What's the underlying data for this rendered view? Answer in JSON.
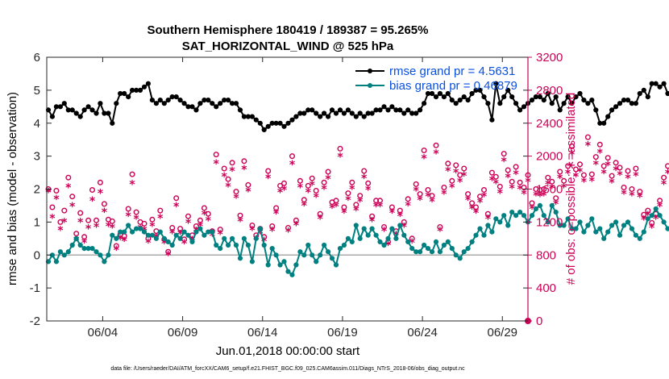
{
  "chart_data": {
    "type": "line",
    "title_line1": "Southern Hemisphere 180419 / 189387 = 95.265%",
    "title_line2": "SAT_HORIZONTAL_WIND @ 525 hPa",
    "xlabel": "Jun.01,2018 00:00:00 start",
    "ylabel_left": "rmse and bias (model - observation)",
    "ylabel_right": "# of obs: o=possible; ∗=assimilated",
    "footer": "data file: /Users/raeder/DAI/ATM_forcXX/CAM6_setup/f.e21.FHIST_BGC.f09_025.CAM6assim.011/Diags_NTrS_2018-06/obs_diag_output.nc",
    "xlim": [
      0.5,
      30.6
    ],
    "ylim_left": [
      -2,
      6
    ],
    "ylim_right": [
      0,
      3200
    ],
    "xtick_values": [
      4,
      9,
      14,
      19,
      24,
      29
    ],
    "xtick_labels": [
      "06/04",
      "06/09",
      "06/14",
      "06/19",
      "06/24",
      "06/29"
    ],
    "yticks_left": [
      "-2",
      "-1",
      "0",
      "1",
      "2",
      "3",
      "4",
      "5",
      "6"
    ],
    "yticks_right": [
      "0",
      "400",
      "800",
      "1200",
      "1600",
      "2000",
      "2400",
      "2800",
      "3200"
    ],
    "colors": {
      "rmse": "#000000",
      "bias": "#008080",
      "counts": "#cc0055",
      "zero_line": "#aaaaaa"
    },
    "legend": [
      {
        "name": "rmse grand pr = 4.5631",
        "color": "#0a50e0"
      },
      {
        "name": "bias grand pr = 0.46879",
        "color": "#0a50e0"
      }
    ],
    "series_x_start": 0.6,
    "series_x_step": 0.25,
    "series": [
      {
        "name": "rmse",
        "axis": "left",
        "values": [
          4.4,
          4.2,
          4.5,
          4.5,
          4.6,
          4.4,
          4.4,
          4.3,
          4.2,
          4.4,
          4.5,
          4.4,
          4.3,
          4.6,
          4.3,
          4.3,
          4.0,
          4.6,
          4.9,
          4.9,
          4.8,
          5.0,
          5.0,
          5.0,
          5.1,
          5.2,
          4.7,
          4.6,
          4.7,
          4.6,
          4.7,
          4.8,
          4.8,
          4.7,
          4.6,
          4.5,
          4.5,
          4.4,
          4.6,
          4.7,
          4.7,
          4.6,
          4.5,
          4.6,
          4.7,
          4.7,
          4.6,
          4.6,
          4.4,
          4.2,
          4.2,
          4.2,
          4.1,
          4.0,
          3.8,
          3.9,
          4.0,
          4.0,
          4.0,
          3.9,
          4.0,
          4.1,
          4.2,
          4.3,
          4.3,
          4.4,
          4.4,
          4.3,
          4.2,
          4.3,
          4.2,
          4.4,
          4.3,
          4.4,
          4.3,
          4.4,
          4.3,
          4.2,
          4.3,
          4.2,
          4.3,
          4.3,
          4.4,
          4.4,
          4.5,
          4.4,
          4.5,
          4.4,
          4.4,
          4.3,
          4.4,
          4.3,
          4.3,
          4.4,
          4.6,
          4.9,
          4.9,
          4.8,
          4.9,
          4.8,
          4.9,
          4.7,
          4.6,
          4.7,
          4.8,
          4.7,
          4.9,
          5.0,
          5.0,
          4.8,
          4.6,
          4.1,
          5.2,
          4.6,
          4.8,
          5.0,
          4.8,
          4.6,
          4.4,
          4.5,
          4.6,
          4.7,
          4.8,
          4.8,
          4.7,
          4.9,
          4.6,
          4.8,
          4.4,
          4.6,
          4.8,
          4.6,
          4.8,
          4.9,
          4.7,
          4.6,
          4.7,
          4.4,
          4.0,
          4.0,
          4.2,
          4.4,
          4.5,
          4.6,
          4.7,
          4.7,
          4.6,
          4.6,
          4.9,
          5.0,
          4.8,
          5.2,
          5.2,
          5.1,
          5.2,
          4.9,
          4.8,
          4.8,
          4.8
        ]
      },
      {
        "name": "bias",
        "axis": "left",
        "values": [
          -0.2,
          0.0,
          -0.2,
          0.1,
          0.0,
          0.1,
          0.3,
          0.5,
          0.3,
          0.2,
          0.2,
          0.2,
          0.1,
          0.0,
          -0.2,
          0.0,
          0.6,
          0.5,
          0.7,
          0.7,
          0.9,
          0.7,
          0.8,
          0.8,
          0.7,
          0.6,
          0.6,
          0.5,
          0.7,
          0.5,
          0.4,
          0.3,
          0.6,
          0.5,
          0.7,
          0.6,
          0.4,
          0.7,
          0.8,
          0.6,
          0.7,
          0.7,
          0.3,
          0.2,
          0.5,
          0.3,
          0.5,
          0.3,
          -0.1,
          0.5,
          0.3,
          -0.2,
          0.5,
          0.8,
          0.3,
          -0.3,
          0.2,
          0.0,
          -0.3,
          -0.2,
          -0.5,
          -0.6,
          -0.3,
          0.1,
          0.0,
          0.3,
          0.0,
          -0.2,
          0.0,
          0.3,
          0.1,
          -0.1,
          -0.3,
          0.2,
          0.3,
          0.5,
          0.4,
          0.9,
          0.5,
          0.8,
          0.6,
          0.8,
          0.6,
          0.4,
          0.3,
          0.5,
          0.8,
          0.5,
          0.9,
          0.6,
          0.4,
          0.2,
          0.1,
          0.1,
          0.3,
          0.2,
          0.1,
          0.4,
          0.1,
          0.3,
          0.4,
          0.2,
          0.0,
          -0.1,
          0.1,
          0.2,
          0.4,
          0.6,
          0.8,
          0.6,
          0.9,
          0.7,
          1.1,
          1.0,
          1.2,
          0.9,
          1.3,
          1.2,
          1.3,
          1.2,
          1.0,
          1.2,
          1.4,
          1.5,
          1.2,
          1.0,
          1.5,
          1.3,
          0.9,
          0.9,
          1.1,
          0.8,
          0.8,
          1.0,
          0.7,
          0.9,
          1.1,
          0.7,
          0.8,
          0.5,
          0.7,
          0.9,
          1.0,
          0.6,
          0.9,
          1.0,
          0.8,
          0.6,
          0.5,
          0.7,
          1.1,
          1.2,
          1.4,
          1.2,
          1.0,
          0.8,
          0.7,
          0.9,
          0.6
        ]
      },
      {
        "name": "obs possible",
        "axis": "right",
        "marker": "o",
        "values": [
          1600,
          1380,
          1580,
          1200,
          1340,
          1740,
          1510,
          1060,
          1310,
          1020,
          1220,
          1590,
          1220,
          1680,
          1420,
          1230,
          1210,
          910,
          1050,
          1030,
          1360,
          1780,
          1320,
          1200,
          1180,
          1000,
          1230,
          1090,
          1340,
          990,
          840,
          1130,
          1490,
          1120,
          990,
          1270,
          1040,
          1150,
          1220,
          1370,
          1300,
          1090,
          2020,
          1110,
          1850,
          1720,
          1920,
          1570,
          1280,
          1940,
          1650,
          1160,
          1040,
          1120,
          1020,
          1820,
          1150,
          1370,
          1640,
          1670,
          1130,
          2000,
          1220,
          1700,
          1470,
          1640,
          1730,
          1580,
          1300,
          1680,
          1810,
          1440,
          1460,
          2090,
          1380,
          1550,
          1680,
          1410,
          1520,
          1820,
          1670,
          1270,
          1460,
          1460,
          1140,
          960,
          1380,
          1090,
          1340,
          1200,
          1480,
          1000,
          1660,
          1540,
          2070,
          1590,
          1520,
          2130,
          1140,
          1620,
          1910,
          1700,
          1890,
          1770,
          1850,
          1540,
          1430,
          1380,
          1510,
          1590,
          1300,
          1800,
          1750,
          1630,
          2030,
          1830,
          1690,
          1870,
          1680,
          1620,
          1770,
          1430,
          1600,
          1590,
          1600,
          1740,
          1690,
          1490,
          1810,
          1700,
          1880,
          2120,
          1840,
          1900,
          1770,
          2230,
          1780,
          1990,
          2140,
          1880,
          1980,
          1760,
          1920,
          1860,
          1620,
          1820,
          1600,
          1850,
          1570,
          1290,
          1340,
          1190,
          1300,
          1460,
          1740,
          1880,
          1790,
          1900,
          1780
        ]
      },
      {
        "name": "obs assimilated",
        "axis": "right",
        "marker": "*",
        "values": [
          1560,
          1250,
          1480,
          1100,
          1200,
          1620,
          1390,
          980,
          1200,
          950,
          1120,
          1460,
          1140,
          1550,
          1320,
          1150,
          1130,
          860,
          990,
          970,
          1270,
          1660,
          1240,
          1120,
          1100,
          950,
          1150,
          1020,
          1250,
          940,
          800,
          1060,
          1390,
          1050,
          940,
          1190,
          980,
          1090,
          1150,
          1290,
          1220,
          1030,
          1910,
          1050,
          1750,
          1630,
          1820,
          1490,
          1210,
          1840,
          1570,
          1100,
          990,
          1060,
          970,
          1730,
          1090,
          1300,
          1560,
          1590,
          1080,
          1900,
          1160,
          1620,
          1400,
          1560,
          1650,
          1500,
          1240,
          1600,
          1720,
          1370,
          1390,
          1990,
          1310,
          1470,
          1600,
          1340,
          1450,
          1730,
          1590,
          1210,
          1390,
          1390,
          1090,
          920,
          1310,
          1040,
          1270,
          1140,
          1400,
          950,
          1580,
          1470,
          1970,
          1510,
          1450,
          2030,
          1090,
          1540,
          1820,
          1620,
          1800,
          1690,
          1760,
          1470,
          1360,
          1310,
          1440,
          1510,
          1240,
          1710,
          1670,
          1550,
          1940,
          1740,
          1610,
          1780,
          1600,
          1540,
          1690,
          1360,
          1520,
          1510,
          1520,
          1660,
          1610,
          1420,
          1730,
          1620,
          1790,
          2020,
          1750,
          1810,
          1690,
          2130,
          1700,
          1900,
          2040,
          1790,
          1890,
          1680,
          1830,
          1770,
          1540,
          1730,
          1520,
          1760,
          1500,
          1230,
          1280,
          1130,
          1240,
          1390,
          1660,
          1790,
          1700,
          1810,
          1690
        ]
      }
    ],
    "end_marker": {
      "x": 30.6,
      "value": 0,
      "axis": "right"
    }
  }
}
